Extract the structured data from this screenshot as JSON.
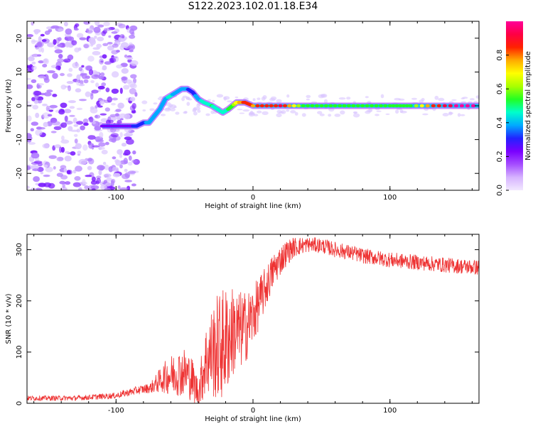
{
  "figure": {
    "title": "S122.2023.102.01.18.E34"
  },
  "colors": {
    "snr_line": "#ee3333",
    "frame": "#000000",
    "colormap": [
      "#f2e8ff",
      "#d6b3ff",
      "#a54dff",
      "#7a00ff",
      "#2222ff",
      "#00aaff",
      "#00ffcc",
      "#22ff22",
      "#aaff00",
      "#ffff00",
      "#ffaa00",
      "#ff2200",
      "#ff0044",
      "#ff0099"
    ]
  },
  "chart_data": [
    {
      "type": "heatmap",
      "id": "spectrogram",
      "xlabel": "Height of straight line (km)",
      "ylabel": "Frequency (Hz)",
      "xlim": [
        -165,
        165
      ],
      "ylim": [
        -25,
        25
      ],
      "xticks": [
        -100,
        0,
        100
      ],
      "yticks": [
        -20,
        -10,
        0,
        10,
        20
      ],
      "colorbar": {
        "label": "Normalized spectral amplitude",
        "range": [
          0,
          1
        ],
        "ticks": [
          "0.0",
          "0.2",
          "0.4",
          "0.6",
          "0.8"
        ],
        "tick_values": [
          0,
          0.2,
          0.4,
          0.6,
          0.8
        ]
      },
      "ridge": {
        "x": [
          -110,
          -100,
          -90,
          -85,
          -80,
          -76,
          -72,
          -68,
          -64,
          -60,
          -56,
          -52,
          -48,
          -44,
          -40,
          -36,
          -30,
          -26,
          -22,
          -18,
          -15,
          -12,
          -6,
          0,
          20,
          40,
          60,
          80,
          100,
          115,
          140,
          165
        ],
        "y": [
          -6,
          -6,
          -6,
          -6,
          -5,
          -5,
          -3,
          -1,
          2,
          3,
          4,
          5,
          5,
          4,
          2,
          1,
          0,
          -1,
          -2,
          -1,
          0,
          1,
          1,
          0,
          0,
          0,
          0,
          0,
          0,
          0,
          0,
          0
        ],
        "amplitude": [
          0.2,
          0.22,
          0.25,
          0.3,
          0.3,
          0.4,
          0.35,
          0.35,
          0.4,
          0.45,
          0.35,
          0.4,
          0.35,
          0.3,
          0.4,
          0.45,
          0.5,
          0.45,
          0.45,
          0.5,
          0.55,
          0.7,
          0.85,
          0.8,
          0.9,
          0.5,
          0.5,
          0.55,
          0.5,
          0.55,
          0.95,
          1.0
        ]
      },
      "noise_region": {
        "x_range": [
          -165,
          -85
        ],
        "y_range": [
          -25,
          25
        ],
        "typical_amplitude": 0.1
      }
    },
    {
      "type": "line",
      "id": "snr",
      "xlabel": "Height of straight line (km)",
      "ylabel": "SNR (10 * v/v)",
      "xlim": [
        -165,
        165
      ],
      "ylim": [
        0,
        330
      ],
      "xticks": [
        -100,
        0,
        100
      ],
      "yticks": [
        0,
        100,
        200,
        300
      ],
      "series": [
        {
          "x": [
            -165,
            -130,
            -100,
            -85,
            -75,
            -70,
            -65,
            -60,
            -55,
            -50,
            -45,
            -40,
            -35,
            -30,
            -25,
            -20,
            -15,
            -10,
            -5,
            0,
            5,
            10,
            15,
            20,
            25,
            30,
            40,
            50,
            60,
            70,
            80,
            100,
            120,
            140,
            165
          ],
          "y": [
            10,
            10,
            15,
            25,
            30,
            40,
            50,
            55,
            60,
            60,
            50,
            20,
            80,
            100,
            110,
            120,
            140,
            140,
            150,
            170,
            200,
            230,
            260,
            280,
            295,
            305,
            310,
            308,
            300,
            295,
            288,
            280,
            275,
            270,
            265
          ],
          "amplitude": [
            5,
            5,
            6,
            8,
            10,
            20,
            30,
            40,
            45,
            50,
            45,
            30,
            70,
            90,
            110,
            110,
            90,
            80,
            70,
            60,
            50,
            40,
            35,
            30,
            25,
            20,
            15,
            15,
            15,
            15,
            15,
            15,
            15,
            15,
            15
          ]
        }
      ]
    }
  ]
}
